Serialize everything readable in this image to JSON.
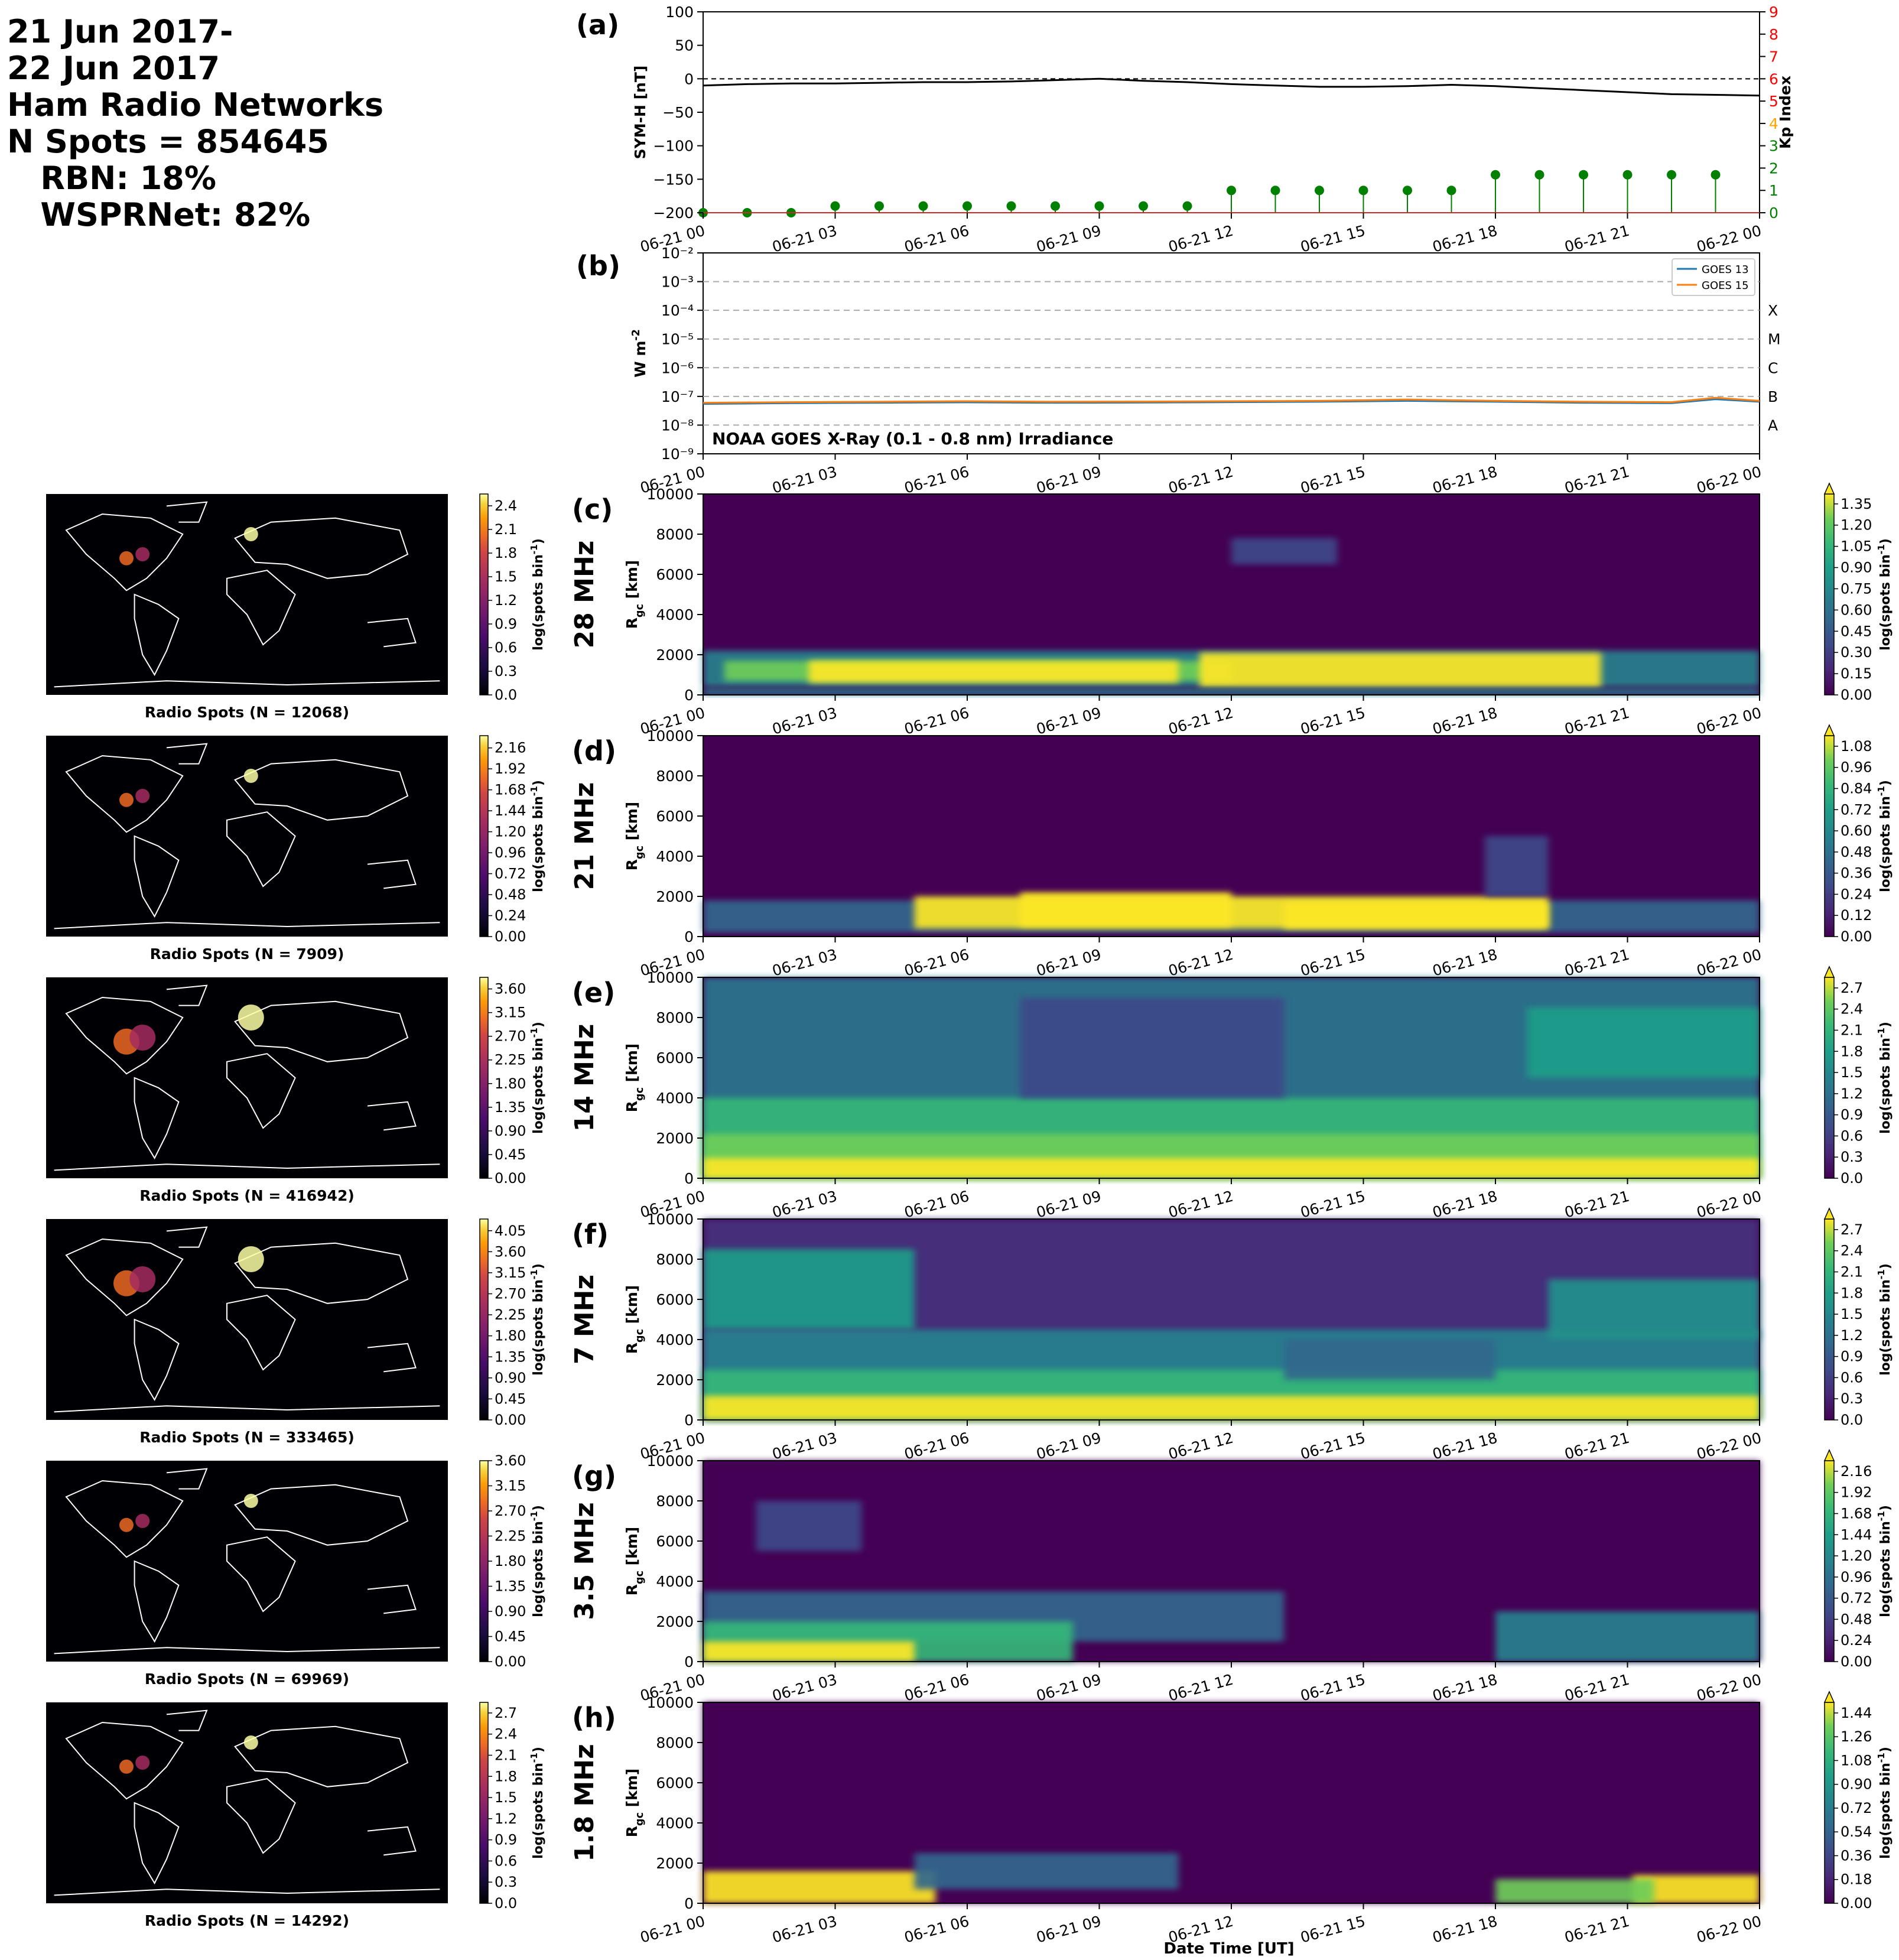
{
  "header": {
    "lines": [
      "21 Jun 2017-",
      "22 Jun 2017",
      "Ham Radio Networks",
      "N Spots = 854645",
      "   RBN: 18%",
      "   WSPRNet: 82%"
    ]
  },
  "colors": {
    "symh_line": "#000000",
    "kp_stem": "#008000",
    "kp_axis_low": "#008000",
    "kp_axis_mid": "#ffa500",
    "kp_axis_high": "#ff0000",
    "goes13": "#1f77b4",
    "goes15": "#ff7f0e",
    "map_ocean": "#000004",
    "map_coast": "#ffffff"
  },
  "time_axis": {
    "ticks": [
      "06-21 00",
      "06-21 03",
      "06-21 06",
      "06-21 09",
      "06-21 12",
      "06-21 15",
      "06-21 18",
      "06-21 21",
      "06-22 00"
    ],
    "hours": [
      0,
      3,
      6,
      9,
      12,
      15,
      18,
      21,
      24
    ],
    "xlabel": "Date Time [UT]"
  },
  "panel_a": {
    "label": "(a)",
    "ylabel_left": "SYM-H [nT]",
    "ylabel_right": "Kp Index",
    "ylim_left": [
      -200,
      100
    ],
    "yticks_left": [
      100,
      50,
      0,
      -50,
      -100,
      -150,
      -200
    ],
    "ylim_right": [
      0,
      9
    ],
    "yticks_right": [
      0,
      1,
      2,
      3,
      4,
      5,
      6,
      7,
      8,
      9
    ],
    "zero_line": "dashed",
    "symh": {
      "hours": [
        0,
        1,
        2,
        3,
        4,
        5,
        6,
        7,
        8,
        9,
        10,
        11,
        12,
        13,
        14,
        15,
        16,
        17,
        18,
        19,
        20,
        21,
        22,
        23,
        24
      ],
      "values": [
        -10,
        -8,
        -7,
        -7,
        -6,
        -5,
        -5,
        -4,
        -2,
        0,
        -3,
        -5,
        -8,
        -10,
        -12,
        -12,
        -11,
        -9,
        -11,
        -14,
        -17,
        -20,
        -23,
        -24,
        -25
      ]
    },
    "kp": {
      "hours": [
        0,
        1,
        2,
        3,
        4,
        5,
        6,
        7,
        8,
        9,
        10,
        11,
        12,
        13,
        14,
        15,
        16,
        17,
        18,
        19,
        20,
        21,
        22,
        23
      ],
      "values": [
        0.0,
        0.0,
        0.0,
        0.3,
        0.3,
        0.3,
        0.3,
        0.3,
        0.3,
        0.3,
        0.3,
        0.3,
        1.0,
        1.0,
        1.0,
        1.0,
        1.0,
        1.0,
        1.7,
        1.7,
        1.7,
        1.7,
        1.7,
        1.7
      ]
    }
  },
  "panel_b": {
    "label": "(b)",
    "ylabel": "W m$^{-2}$",
    "yscale": "log",
    "ylim_exp": [
      -9,
      -2
    ],
    "ytick_labels": [
      "10⁻²",
      "10⁻³",
      "10⁻⁴",
      "10⁻⁵",
      "10⁻⁶",
      "10⁻⁷",
      "10⁻⁸",
      "10⁻⁹"
    ],
    "class_levels": [
      {
        "name": "X",
        "exp": -4
      },
      {
        "name": "M",
        "exp": -5
      },
      {
        "name": "C",
        "exp": -6
      },
      {
        "name": "B",
        "exp": -7
      },
      {
        "name": "A",
        "exp": -8
      }
    ],
    "annotation": "NOAA GOES X-Ray (0.1 - 0.8 nm) Irradiance",
    "legend_position": "top-right",
    "series": [
      {
        "name": "GOES 13",
        "hours": [
          0,
          2,
          4,
          6,
          8,
          10,
          12,
          14,
          16,
          18,
          20,
          22,
          23,
          24
        ],
        "values": [
          5.5e-08,
          5.8e-08,
          6e-08,
          6.2e-08,
          6e-08,
          6.1e-08,
          6.3e-08,
          6.5e-08,
          7e-08,
          6.5e-08,
          6e-08,
          5.8e-08,
          8e-08,
          6.5e-08
        ]
      },
      {
        "name": "GOES 15",
        "hours": [
          0,
          2,
          4,
          6,
          8,
          10,
          12,
          14,
          16,
          18,
          20,
          22,
          23,
          24
        ],
        "values": [
          6e-08,
          6.3e-08,
          6.5e-08,
          6.8e-08,
          6.5e-08,
          6.6e-08,
          6.8e-08,
          7e-08,
          7.8e-08,
          7e-08,
          6.5e-08,
          6.3e-08,
          9e-08,
          7e-08
        ]
      }
    ]
  },
  "band_panels": [
    {
      "label": "(c)",
      "band": "28 MHz",
      "map_caption": "Radio Spots (N = 12068)",
      "ylabel": "R$_{gc}$ [km]",
      "ylim": [
        0,
        10000
      ],
      "yticks": [
        0,
        2000,
        4000,
        6000,
        8000,
        10000
      ],
      "map_cbar_ticks": [
        "0.0",
        "0.3",
        "0.6",
        "0.9",
        "1.2",
        "1.5",
        "1.8",
        "2.1",
        "2.4"
      ],
      "map_cbar_max": 2.55,
      "rtp_cbar_ticks": [
        "0.00",
        "0.15",
        "0.30",
        "0.45",
        "0.60",
        "0.75",
        "0.90",
        "1.05",
        "1.20",
        "1.35"
      ],
      "rtp_cbar_max": 1.42,
      "cbar_label": "log(spots bin$^{-1}$)"
    },
    {
      "label": "(d)",
      "band": "21 MHz",
      "map_caption": "Radio Spots (N = 7909)",
      "ylabel": "R$_{gc}$ [km]",
      "ylim": [
        0,
        10000
      ],
      "yticks": [
        0,
        2000,
        4000,
        6000,
        8000,
        10000
      ],
      "map_cbar_ticks": [
        "0.00",
        "0.24",
        "0.48",
        "0.72",
        "0.96",
        "1.20",
        "1.44",
        "1.68",
        "1.92",
        "2.16"
      ],
      "map_cbar_max": 2.3,
      "rtp_cbar_ticks": [
        "0.00",
        "0.12",
        "0.24",
        "0.36",
        "0.48",
        "0.60",
        "0.72",
        "0.84",
        "0.96",
        "1.08"
      ],
      "rtp_cbar_max": 1.14,
      "cbar_label": "log(spots bin$^{-1}$)"
    },
    {
      "label": "(e)",
      "band": "14 MHz",
      "map_caption": "Radio Spots (N = 416942)",
      "ylabel": "R$_{gc}$ [km]",
      "ylim": [
        0,
        10000
      ],
      "yticks": [
        0,
        2000,
        4000,
        6000,
        8000,
        10000
      ],
      "map_cbar_ticks": [
        "0.00",
        "0.45",
        "0.90",
        "1.35",
        "1.80",
        "2.25",
        "2.70",
        "3.15",
        "3.60"
      ],
      "map_cbar_max": 3.82,
      "rtp_cbar_ticks": [
        "0.0",
        "0.3",
        "0.6",
        "0.9",
        "1.2",
        "1.5",
        "1.8",
        "2.1",
        "2.4",
        "2.7"
      ],
      "rtp_cbar_max": 2.85,
      "cbar_label": "log(spots bin$^{-1}$)"
    },
    {
      "label": "(f)",
      "band": "7 MHz",
      "map_caption": "Radio Spots (N = 333465)",
      "ylabel": "R$_{gc}$ [km]",
      "ylim": [
        0,
        10000
      ],
      "yticks": [
        0,
        2000,
        4000,
        6000,
        8000,
        10000
      ],
      "map_cbar_ticks": [
        "0.00",
        "0.45",
        "0.90",
        "1.35",
        "1.80",
        "2.25",
        "2.70",
        "3.15",
        "3.60",
        "4.05"
      ],
      "map_cbar_max": 4.3,
      "rtp_cbar_ticks": [
        "0.0",
        "0.3",
        "0.6",
        "0.9",
        "1.2",
        "1.5",
        "1.8",
        "2.1",
        "2.4",
        "2.7"
      ],
      "rtp_cbar_max": 2.85,
      "cbar_label": "log(spots bin$^{-1}$)"
    },
    {
      "label": "(g)",
      "band": "3.5 MHz",
      "map_caption": "Radio Spots (N = 69969)",
      "ylabel": "R$_{gc}$ [km]",
      "ylim": [
        0,
        10000
      ],
      "yticks": [
        0,
        2000,
        4000,
        6000,
        8000,
        10000
      ],
      "map_cbar_ticks": [
        "0.00",
        "0.45",
        "0.90",
        "1.35",
        "1.80",
        "2.25",
        "2.70",
        "3.15",
        "3.60"
      ],
      "map_cbar_max": 3.6,
      "rtp_cbar_ticks": [
        "0.00",
        "0.24",
        "0.48",
        "0.72",
        "0.96",
        "1.20",
        "1.44",
        "1.68",
        "1.92",
        "2.16"
      ],
      "rtp_cbar_max": 2.28,
      "cbar_label": "log(spots bin$^{-1}$)"
    },
    {
      "label": "(h)",
      "band": "1.8 MHz",
      "map_caption": "Radio Spots (N = 14292)",
      "ylabel": "R$_{gc}$ [km]",
      "ylim": [
        0,
        10000
      ],
      "yticks": [
        0,
        2000,
        4000,
        6000,
        8000,
        10000
      ],
      "map_cbar_ticks": [
        "0.0",
        "0.3",
        "0.6",
        "0.9",
        "1.2",
        "1.5",
        "1.8",
        "2.1",
        "2.4",
        "2.7"
      ],
      "map_cbar_max": 2.85,
      "rtp_cbar_ticks": [
        "0.00",
        "0.18",
        "0.36",
        "0.54",
        "0.72",
        "0.90",
        "1.08",
        "1.26",
        "1.44"
      ],
      "rtp_cbar_max": 1.52,
      "cbar_label": "log(spots bin$^{-1}$)"
    }
  ],
  "chart_data": [
    {
      "type": "line",
      "panel": "(a)",
      "ylabel": "SYM-H [nT]",
      "y2label": "Kp Index",
      "ylim": [
        -200,
        100
      ],
      "y2lim": [
        0,
        9
      ]
    },
    {
      "type": "line",
      "panel": "(b)",
      "ylabel": "W m$^{-2}$",
      "yscale": "log",
      "series_names": [
        "GOES 13",
        "GOES 15"
      ]
    },
    {
      "type": "heatmap",
      "panels": [
        "(c)",
        "(d)",
        "(e)",
        "(f)",
        "(g)",
        "(h)"
      ],
      "xlabel": "Date Time [UT]",
      "ylabel": "R$_{gc}$ [km]",
      "ylim": [
        0,
        10000
      ],
      "colormap": "viridis"
    }
  ]
}
